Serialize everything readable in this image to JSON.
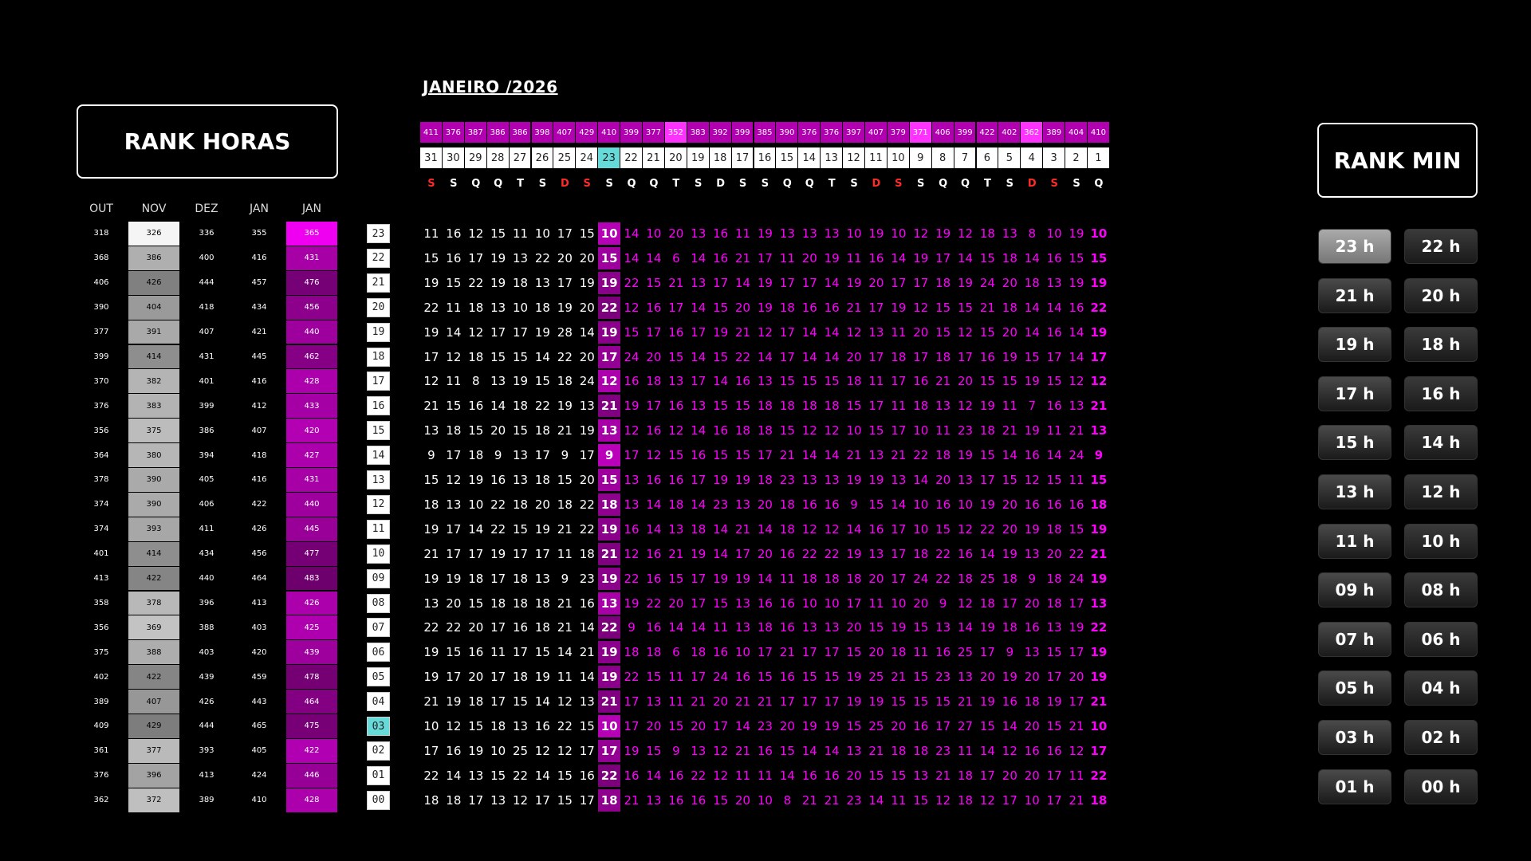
{
  "title_left": "RANK HORAS",
  "title_right": "RANK MIN",
  "month_title": "JANEIRO /2026",
  "left_headers": [
    "OUT",
    "NOV",
    "DEZ",
    "JAN",
    "JAN"
  ],
  "hours": [
    "23",
    "22",
    "21",
    "20",
    "19",
    "18",
    "17",
    "16",
    "15",
    "14",
    "13",
    "12",
    "11",
    "10",
    "09",
    "08",
    "07",
    "06",
    "05",
    "04",
    "03",
    "02",
    "01",
    "00"
  ],
  "highlight_hour": "03",
  "left_table": [
    [
      318,
      326,
      336,
      355,
      365
    ],
    [
      368,
      386,
      400,
      416,
      431
    ],
    [
      406,
      426,
      444,
      457,
      476
    ],
    [
      390,
      404,
      418,
      434,
      456
    ],
    [
      377,
      391,
      407,
      421,
      440
    ],
    [
      399,
      414,
      431,
      445,
      462
    ],
    [
      370,
      382,
      401,
      416,
      428
    ],
    [
      376,
      383,
      399,
      412,
      433
    ],
    [
      356,
      375,
      386,
      407,
      420
    ],
    [
      364,
      380,
      394,
      418,
      427
    ],
    [
      378,
      390,
      405,
      416,
      431
    ],
    [
      374,
      390,
      406,
      422,
      440
    ],
    [
      374,
      393,
      411,
      426,
      445
    ],
    [
      401,
      414,
      434,
      456,
      477
    ],
    [
      413,
      422,
      440,
      464,
      483
    ],
    [
      358,
      378,
      396,
      413,
      426
    ],
    [
      356,
      369,
      388,
      403,
      425
    ],
    [
      375,
      388,
      403,
      420,
      439
    ],
    [
      402,
      422,
      439,
      459,
      478
    ],
    [
      389,
      407,
      426,
      443,
      464
    ],
    [
      409,
      429,
      444,
      465,
      475
    ],
    [
      361,
      377,
      393,
      405,
      422
    ],
    [
      376,
      396,
      413,
      424,
      446
    ],
    [
      362,
      372,
      389,
      410,
      428
    ]
  ],
  "days": [
    31,
    30,
    29,
    28,
    27,
    26,
    25,
    24,
    23,
    22,
    21,
    20,
    19,
    18,
    17,
    16,
    15,
    14,
    13,
    12,
    11,
    10,
    9,
    8,
    7,
    6,
    5,
    4,
    3,
    2,
    1
  ],
  "day_ranks": [
    411,
    376,
    387,
    386,
    386,
    398,
    407,
    429,
    410,
    399,
    377,
    352,
    383,
    392,
    399,
    385,
    390,
    376,
    376,
    397,
    407,
    379,
    371,
    406,
    399,
    422,
    402,
    362,
    389,
    404,
    410
  ],
  "weekdays": [
    "S",
    "S",
    "Q",
    "Q",
    "T",
    "S",
    "D",
    "S",
    "S",
    "Q",
    "Q",
    "T",
    "S",
    "D",
    "S",
    "S",
    "Q",
    "Q",
    "T",
    "S",
    "D",
    "S",
    "S",
    "Q",
    "Q",
    "T",
    "S",
    "D",
    "S",
    "S",
    "Q"
  ],
  "red_weekday_indices": [
    0,
    6,
    7,
    20,
    21,
    27,
    28
  ],
  "highlight_day_index": 8,
  "grid": [
    [
      11,
      16,
      12,
      15,
      11,
      10,
      17,
      15,
      10,
      14,
      10,
      20,
      13,
      16,
      11,
      19,
      13,
      13,
      13,
      10,
      19,
      10,
      12,
      19,
      12,
      18,
      13,
      8,
      10,
      19,
      10
    ],
    [
      15,
      16,
      17,
      19,
      13,
      22,
      20,
      20,
      15,
      14,
      14,
      6,
      14,
      16,
      21,
      17,
      11,
      20,
      19,
      11,
      16,
      14,
      19,
      17,
      14,
      15,
      18,
      14,
      16,
      15,
      15
    ],
    [
      19,
      15,
      22,
      19,
      18,
      13,
      17,
      19,
      19,
      22,
      15,
      21,
      13,
      17,
      14,
      19,
      17,
      17,
      14,
      19,
      20,
      17,
      17,
      18,
      19,
      24,
      20,
      18,
      13,
      19,
      19
    ],
    [
      22,
      11,
      18,
      13,
      10,
      18,
      19,
      20,
      22,
      12,
      16,
      17,
      14,
      15,
      20,
      19,
      18,
      16,
      16,
      21,
      17,
      19,
      12,
      15,
      15,
      21,
      18,
      14,
      14,
      16,
      22
    ],
    [
      19,
      14,
      12,
      17,
      17,
      19,
      28,
      14,
      19,
      15,
      17,
      16,
      17,
      19,
      21,
      12,
      17,
      14,
      14,
      12,
      13,
      11,
      20,
      15,
      12,
      15,
      20,
      14,
      16,
      14,
      19
    ],
    [
      17,
      12,
      18,
      15,
      15,
      14,
      22,
      20,
      17,
      24,
      20,
      15,
      14,
      15,
      22,
      14,
      17,
      14,
      14,
      20,
      17,
      18,
      17,
      18,
      17,
      16,
      19,
      15,
      17,
      14,
      17
    ],
    [
      12,
      11,
      8,
      13,
      19,
      15,
      18,
      24,
      12,
      16,
      18,
      13,
      17,
      14,
      16,
      13,
      15,
      15,
      15,
      18,
      11,
      17,
      16,
      21,
      20,
      15,
      15,
      19,
      15,
      12,
      12
    ],
    [
      21,
      15,
      16,
      14,
      18,
      22,
      19,
      13,
      21,
      19,
      17,
      16,
      13,
      15,
      15,
      18,
      18,
      18,
      18,
      15,
      17,
      11,
      18,
      13,
      12,
      19,
      11,
      7,
      16,
      13,
      21
    ],
    [
      13,
      18,
      15,
      20,
      15,
      18,
      21,
      19,
      13,
      12,
      16,
      12,
      14,
      16,
      18,
      18,
      15,
      12,
      12,
      10,
      15,
      17,
      10,
      11,
      23,
      18,
      21,
      19,
      11,
      21,
      13
    ],
    [
      9,
      17,
      18,
      9,
      13,
      17,
      9,
      17,
      9,
      17,
      12,
      15,
      16,
      15,
      15,
      17,
      21,
      14,
      14,
      21,
      13,
      21,
      22,
      18,
      19,
      15,
      14,
      16,
      14,
      24,
      9
    ],
    [
      15,
      12,
      19,
      16,
      13,
      18,
      15,
      20,
      15,
      13,
      16,
      16,
      17,
      19,
      19,
      18,
      23,
      13,
      13,
      19,
      19,
      13,
      14,
      20,
      13,
      17,
      15,
      12,
      15,
      11,
      15
    ],
    [
      18,
      13,
      10,
      22,
      18,
      20,
      18,
      22,
      18,
      13,
      14,
      18,
      14,
      23,
      13,
      20,
      18,
      16,
      16,
      9,
      15,
      14,
      10,
      16,
      10,
      19,
      20,
      16,
      16,
      16,
      18
    ],
    [
      19,
      17,
      14,
      22,
      15,
      19,
      21,
      22,
      19,
      16,
      14,
      13,
      18,
      14,
      21,
      14,
      18,
      12,
      12,
      14,
      16,
      17,
      10,
      15,
      12,
      22,
      20,
      19,
      18,
      15,
      19
    ],
    [
      21,
      17,
      17,
      19,
      17,
      17,
      11,
      18,
      21,
      12,
      16,
      21,
      19,
      14,
      17,
      20,
      16,
      22,
      22,
      19,
      13,
      17,
      18,
      22,
      16,
      14,
      19,
      13,
      20,
      22,
      21
    ],
    [
      19,
      19,
      18,
      17,
      18,
      13,
      9,
      23,
      19,
      22,
      16,
      15,
      17,
      19,
      19,
      14,
      11,
      18,
      18,
      18,
      20,
      17,
      24,
      22,
      18,
      25,
      18,
      9,
      18,
      24,
      19
    ],
    [
      13,
      20,
      15,
      18,
      18,
      18,
      21,
      16,
      13,
      19,
      22,
      20,
      17,
      15,
      13,
      16,
      16,
      10,
      10,
      17,
      11,
      10,
      20,
      9,
      12,
      18,
      17,
      20,
      18,
      17,
      13
    ],
    [
      22,
      22,
      20,
      17,
      16,
      18,
      21,
      14,
      22,
      9,
      16,
      14,
      14,
      11,
      13,
      18,
      16,
      13,
      13,
      20,
      15,
      19,
      15,
      13,
      14,
      19,
      18,
      16,
      13,
      19,
      22
    ],
    [
      19,
      15,
      16,
      11,
      17,
      15,
      14,
      21,
      19,
      18,
      18,
      6,
      18,
      16,
      10,
      17,
      21,
      17,
      17,
      15,
      20,
      18,
      11,
      16,
      25,
      17,
      9,
      13,
      15,
      17,
      19
    ],
    [
      19,
      17,
      20,
      17,
      18,
      19,
      11,
      14,
      19,
      22,
      15,
      11,
      17,
      24,
      16,
      15,
      16,
      15,
      15,
      19,
      25,
      21,
      15,
      23,
      13,
      20,
      19,
      20,
      17,
      20,
      19
    ],
    [
      21,
      19,
      18,
      17,
      15,
      14,
      12,
      13,
      21,
      17,
      13,
      11,
      21,
      20,
      21,
      21,
      17,
      17,
      17,
      19,
      19,
      15,
      15,
      15,
      21,
      19,
      16,
      18,
      19,
      17,
      21
    ],
    [
      10,
      12,
      15,
      18,
      13,
      16,
      22,
      15,
      10,
      17,
      20,
      15,
      20,
      17,
      14,
      23,
      20,
      19,
      19,
      15,
      25,
      20,
      16,
      17,
      27,
      15,
      14,
      20,
      15,
      21,
      10
    ],
    [
      17,
      16,
      19,
      10,
      25,
      12,
      12,
      17,
      17,
      19,
      15,
      9,
      13,
      12,
      21,
      16,
      15,
      14,
      14,
      13,
      21,
      18,
      18,
      23,
      11,
      14,
      12,
      16,
      16,
      12,
      17
    ],
    [
      22,
      14,
      13,
      15,
      22,
      14,
      15,
      16,
      22,
      16,
      14,
      16,
      22,
      12,
      11,
      11,
      14,
      16,
      16,
      20,
      15,
      15,
      13,
      21,
      18,
      17,
      20,
      20,
      17,
      11,
      22
    ],
    [
      18,
      18,
      17,
      13,
      12,
      17,
      15,
      17,
      18,
      21,
      13,
      16,
      16,
      15,
      20,
      10,
      8,
      21,
      21,
      23,
      14,
      11,
      15,
      12,
      18,
      12,
      17,
      10,
      17,
      21,
      18
    ]
  ],
  "min_buttons": [
    [
      "23 h",
      "22 h"
    ],
    [
      "21 h",
      "20 h"
    ],
    [
      "19 h",
      "18 h"
    ],
    [
      "17 h",
      "16 h"
    ],
    [
      "15 h",
      "14 h"
    ],
    [
      "13 h",
      "12 h"
    ],
    [
      "11 h",
      "10 h"
    ],
    [
      "09 h",
      "08 h"
    ],
    [
      "07 h",
      "06 h"
    ],
    [
      "05 h",
      "04 h"
    ],
    [
      "03 h",
      "02 h"
    ],
    [
      "01 h",
      "00 h"
    ]
  ],
  "colors": {
    "accent": "#ff00ff",
    "highlight": "#66d9d9",
    "red": "#ff2a2a"
  }
}
